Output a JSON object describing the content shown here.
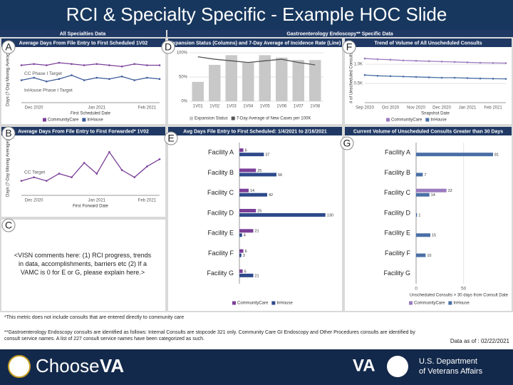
{
  "slide": {
    "title": "RCI & Specialty Specific - Example HOC Slide",
    "section_all": "All Specialties Data",
    "section_gi": "Gastroenterology Endoscopy** Specific Data",
    "panel_letters": [
      "A",
      "B",
      "C",
      "D",
      "E",
      "F",
      "G"
    ],
    "comments": "<VISN comments here: (1) RCI progress, trends in data, accomplishments, barriers etc (2) If a VAMC is 0 for E or G, please explain here.>",
    "footnotes": [
      "*This metric does not include consults that are entered directly to community care",
      "**Gastroenterology Endoscopy consults are identified as follows: Internal Consults are stopcode 321 only. Community Care GI Endoscopy and Other Procedures consults are identified by consult service names. A list of 227 consult service names have been categorized as such."
    ],
    "data_date": "Data as of : 02/22/2021",
    "footer_logo": [
      "Choose",
      "VA"
    ],
    "footer_va": "VA",
    "footer_dept": [
      "U.S. Department",
      "of Veterans Affairs"
    ]
  },
  "chart_data": [
    {
      "type": "line",
      "title": "Average Days From File Entry to First Scheduled 1V02",
      "y_label": "Days (7-Day Moving Average)",
      "x_label": "First Scheduled Date",
      "categories": [
        null,
        "Dec 2020",
        null,
        null,
        null,
        null,
        "Jan 2021",
        null,
        null,
        null,
        "Feb 2021",
        null
      ],
      "series": [
        {
          "name": "CommunityCare",
          "color": "#7b3f98",
          "values": [
            30,
            31,
            30,
            32,
            31,
            30,
            31,
            30,
            29,
            31,
            30,
            30
          ]
        },
        {
          "name": "InHouse",
          "color": "#3b5998",
          "values": [
            18,
            20,
            17,
            19,
            22,
            18,
            20,
            19,
            21,
            18,
            20,
            19
          ]
        }
      ],
      "ylim": [
        0,
        40
      ],
      "annotations": [
        "CC Phase I Target",
        "InHouse Phase I Target"
      ]
    },
    {
      "type": "line",
      "title": "Average Days From File Entry to First Forwarded* 1V02",
      "y_label": "Days (7-Day Moving Average)",
      "x_label": "First Forward Date",
      "categories": [
        null,
        "Dec 2020",
        null,
        null,
        null,
        null,
        "Jan 2021",
        null,
        null,
        null,
        "Feb 2021",
        null
      ],
      "values": [
        4,
        5,
        4,
        6,
        5,
        9,
        6,
        12,
        7,
        5,
        8,
        10
      ],
      "color": "#7b3f98",
      "ylim": [
        0,
        15
      ],
      "annotations": [
        "CC Target"
      ]
    },
    {
      "type": "bar",
      "title": "Expansion Status (Columns) and 7-Day Average of Incidence Rate (Line)",
      "categories": [
        "1V01",
        "1V02",
        "1V03",
        "1V04",
        "1V05",
        "1V06",
        "1V07",
        "1V08"
      ],
      "series": [
        {
          "name": "Expansion Status",
          "color": "#c8c8c8",
          "values": [
            40,
            75,
            95,
            80,
            95,
            90,
            85,
            85
          ]
        },
        {
          "name": "7-Day Average of New Cases per 100K",
          "color": "#555555",
          "axis": "y2",
          "values": [
            55,
            52,
            50,
            48,
            50,
            52,
            48,
            45
          ]
        }
      ],
      "ylim": [
        0,
        100
      ],
      "yticks": [
        {
          "value": 0,
          "label": "0%"
        },
        {
          "value": 50,
          "label": "50%"
        },
        {
          "value": 100,
          "label": "100%"
        }
      ],
      "y2lim": [
        0,
        60
      ]
    },
    {
      "type": "line",
      "title": "Trend of Volume of All Unscheduled Consults",
      "y_label": "# of Unscheduled Consults",
      "x_label": "Snapshot Date",
      "categories": [
        "Sep 2020",
        null,
        "Oct 2020",
        null,
        "Nov 2020",
        null,
        "Dec 2020",
        null,
        "Jan 2021",
        null,
        "Feb 2021",
        null
      ],
      "series": [
        {
          "name": "CommunityCare",
          "color": "#9b7bbf",
          "values": [
            1150,
            1130,
            1120,
            1100,
            1090,
            1080,
            1070,
            1060,
            1050,
            1040,
            1035,
            1030
          ]
        },
        {
          "name": "InHouse",
          "color": "#4a6fa5",
          "values": [
            720,
            700,
            690,
            680,
            670,
            660,
            650,
            650,
            640,
            630,
            625,
            620
          ]
        }
      ],
      "ylim": [
        0,
        1300
      ],
      "yticks": [
        {
          "value": 500,
          "label": "0.5K"
        },
        {
          "value": 1000,
          "label": "1.0K"
        }
      ]
    },
    {
      "type": "hbar",
      "title": "Avg Days File Entry to First Scheduled: 1/4/2021 to 2/16/2021",
      "categories": [
        "Facility A",
        "Facility B",
        "Facility C",
        "Facility D",
        "Facility E",
        "Facility F",
        "Facility G"
      ],
      "series": [
        {
          "name": "CommunityCare",
          "color": "#7b3f98",
          "values": [
            6,
            25,
            14,
            25,
            21,
            6,
            5
          ]
        },
        {
          "name": "InHouse",
          "color": "#2e4a8b",
          "values": [
            37,
            56,
            42,
            130,
            4,
            3,
            21
          ]
        }
      ],
      "xlim": [
        0,
        140
      ]
    },
    {
      "type": "hbar",
      "title": "Current Volume of Unscheduled Consults Greater than 30 Days",
      "x_label": "Unscheduled Consults > 30 days from Consult Date",
      "categories": [
        "Facility A",
        "Facility B",
        "Facility C",
        "Facility D",
        "Facility E",
        "Facility F",
        "Facility G"
      ],
      "series": [
        {
          "name": "CommunityCare",
          "color": "#9b7bbf",
          "values": [
            0,
            0,
            32,
            0,
            0,
            0,
            0
          ]
        },
        {
          "name": "InHouse",
          "color": "#4a6fa5",
          "values": [
            81,
            7,
            14,
            1,
            15,
            10,
            0
          ]
        }
      ],
      "xlim": [
        0,
        90
      ],
      "xticks": [
        0,
        50
      ]
    }
  ]
}
